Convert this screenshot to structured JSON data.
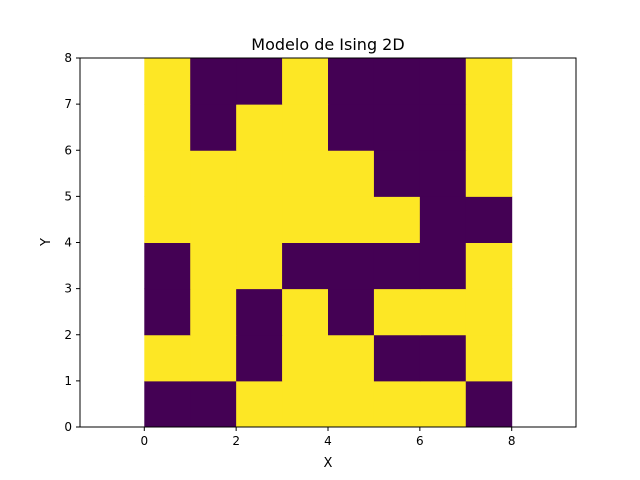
{
  "chart_data": {
    "type": "heatmap",
    "title": "Modelo de Ising 2D",
    "xlabel": "X",
    "ylabel": "Y",
    "xlim": [
      -1.4,
      9.4
    ],
    "ylim": [
      0,
      8
    ],
    "x_ticks": [
      "0",
      "2",
      "4",
      "6",
      "8"
    ],
    "y_ticks": [
      "0",
      "1",
      "2",
      "3",
      "4",
      "5",
      "6",
      "7",
      "8"
    ],
    "grid": false,
    "colors": {
      "up": "#fde725",
      "down": "#440154"
    },
    "spins_rows_bottom_to_top": [
      [
        -1,
        -1,
        1,
        1,
        1,
        1,
        1,
        -1
      ],
      [
        1,
        1,
        -1,
        1,
        1,
        -1,
        -1,
        1
      ],
      [
        -1,
        1,
        -1,
        1,
        -1,
        1,
        1,
        1
      ],
      [
        -1,
        1,
        1,
        -1,
        -1,
        -1,
        -1,
        1
      ],
      [
        1,
        1,
        1,
        1,
        1,
        1,
        -1,
        -1
      ],
      [
        1,
        1,
        1,
        1,
        1,
        -1,
        -1,
        1
      ],
      [
        1,
        -1,
        1,
        1,
        -1,
        -1,
        -1,
        1
      ],
      [
        1,
        -1,
        -1,
        1,
        -1,
        -1,
        -1,
        1
      ]
    ]
  }
}
